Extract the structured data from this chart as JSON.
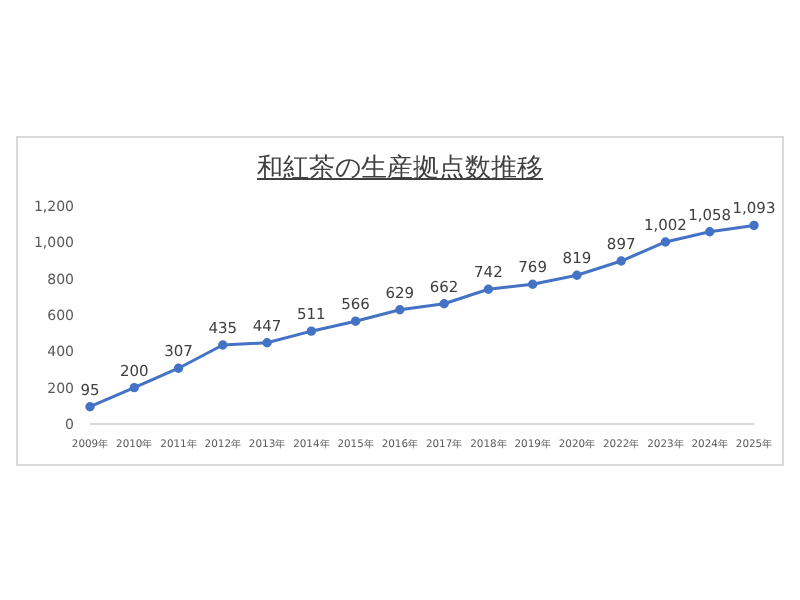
{
  "chart_data": {
    "type": "line",
    "title": "和紅茶の生産拠点数推移",
    "categories": [
      "2009年",
      "2010年",
      "2011年",
      "2012年",
      "2013年",
      "2014年",
      "2015年",
      "2016年",
      "2017年",
      "2018年",
      "2019年",
      "2020年",
      "2022年",
      "2023年",
      "2024年",
      "2025年"
    ],
    "series": [
      {
        "color": "#4472c4",
        "values": [
          95,
          200,
          307,
          435,
          447,
          511,
          566,
          629,
          662,
          742,
          769,
          819,
          897,
          1002,
          1058,
          1093
        ],
        "value_labels": [
          "95",
          "200",
          "307",
          "435",
          "447",
          "511",
          "566",
          "629",
          "662",
          "742",
          "769",
          "819",
          "897",
          "1,002",
          "1,058",
          "1,093"
        ]
      }
    ],
    "ylim": [
      0,
      1200
    ],
    "yticks": [
      0,
      200,
      400,
      600,
      800,
      {
        "value": 1000,
        "label": "1,000"
      },
      {
        "value": 1200,
        "label": "1,200"
      }
    ],
    "grid": false,
    "legend": false,
    "marker": "circle",
    "line_style": "solid"
  }
}
